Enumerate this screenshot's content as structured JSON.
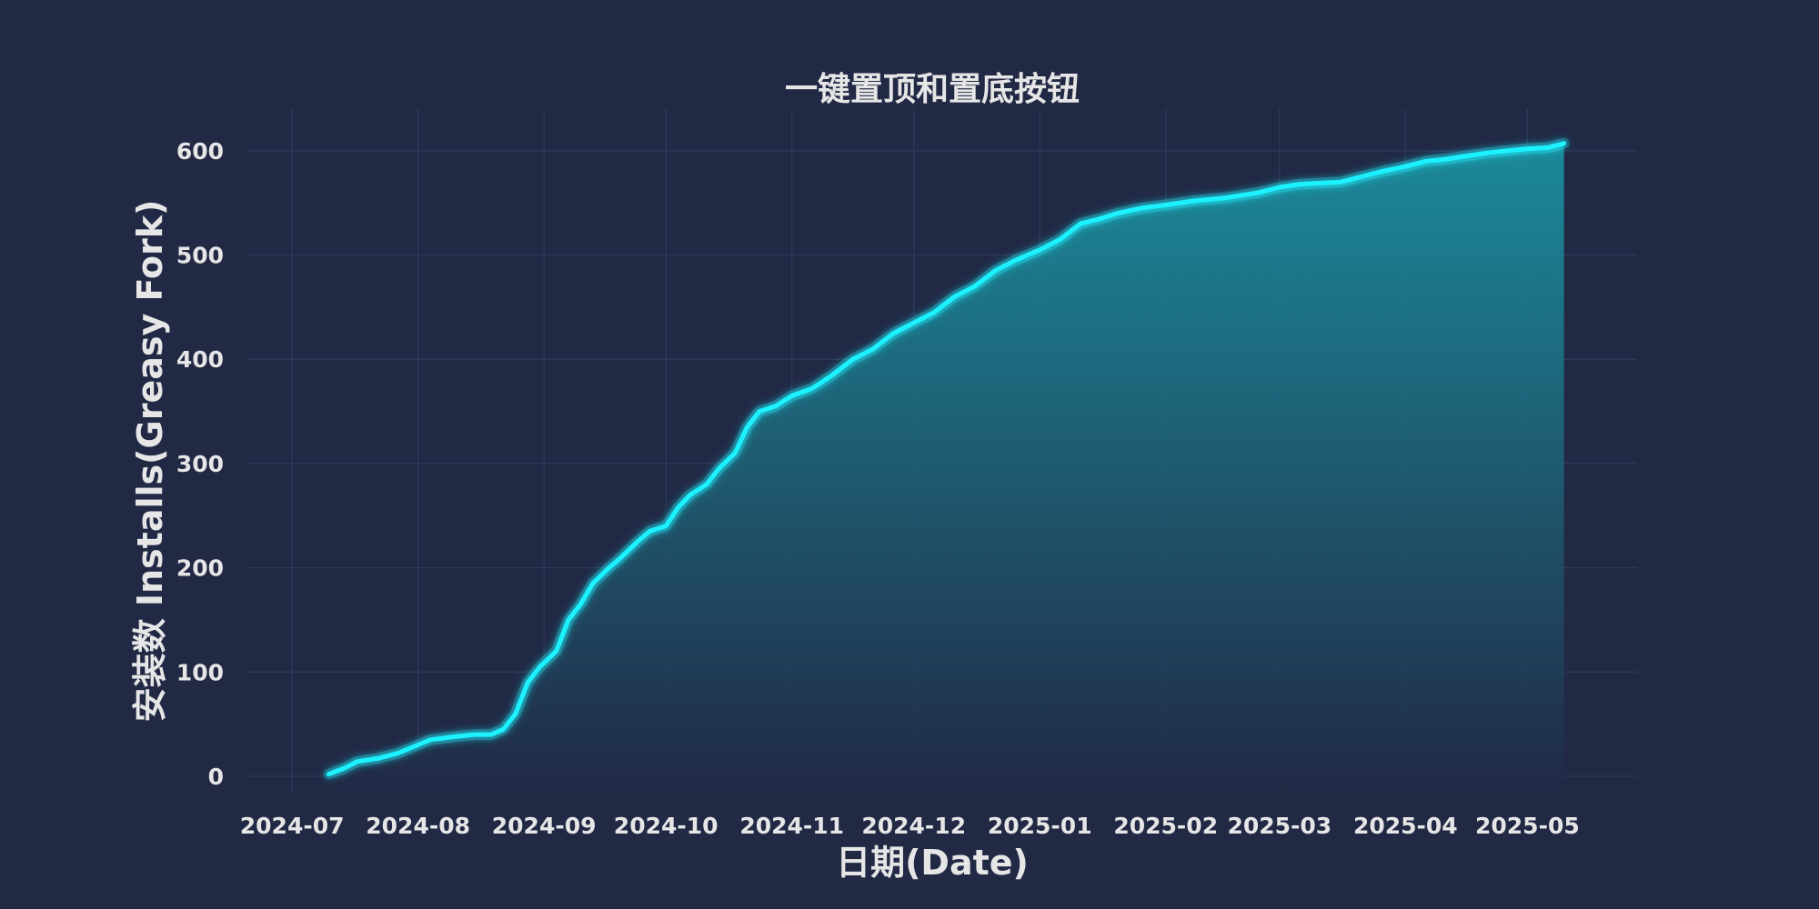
{
  "chart_data": {
    "type": "area",
    "title": "一键置顶和置底按钮",
    "xlabel": "日期(Date)",
    "ylabel": "安装数 Installs(Greasy Fork)",
    "ylim": [
      -14,
      640
    ],
    "xlim": [
      "2024-06-20",
      "2025-05-28"
    ],
    "grid": true,
    "colors": {
      "background": "#212945",
      "line": "#1ef2ff",
      "fill_top": "#1a9aa8",
      "fill_bottom": "#212945",
      "text": "#e6e6e6",
      "grid": "#2f3a5c"
    },
    "y_ticks": [
      0,
      100,
      200,
      300,
      400,
      500,
      600
    ],
    "x_ticks": [
      {
        "date": "2024-07-01",
        "label": "2024-07"
      },
      {
        "date": "2024-08-01",
        "label": "2024-08"
      },
      {
        "date": "2024-09-01",
        "label": "2024-09"
      },
      {
        "date": "2024-10-01",
        "label": "2024-10"
      },
      {
        "date": "2024-11-01",
        "label": "2024-11"
      },
      {
        "date": "2024-12-01",
        "label": "2024-12"
      },
      {
        "date": "2025-01-01",
        "label": "2025-01"
      },
      {
        "date": "2025-02-01",
        "label": "2025-02"
      },
      {
        "date": "2025-03-01",
        "label": "2025-03"
      },
      {
        "date": "2025-04-01",
        "label": "2025-04"
      },
      {
        "date": "2025-05-01",
        "label": "2025-05"
      }
    ],
    "series": [
      {
        "x": [
          "2024-07-10",
          "2024-07-14",
          "2024-07-17",
          "2024-07-22",
          "2024-07-27",
          "2024-08-01",
          "2024-08-04",
          "2024-08-10",
          "2024-08-15",
          "2024-08-19",
          "2024-08-22",
          "2024-08-25",
          "2024-08-28",
          "2024-08-31",
          "2024-09-04",
          "2024-09-07",
          "2024-09-10",
          "2024-09-13",
          "2024-09-17",
          "2024-09-20",
          "2024-09-24",
          "2024-09-27",
          "2024-10-01",
          "2024-10-04",
          "2024-10-07",
          "2024-10-11",
          "2024-10-14",
          "2024-10-18",
          "2024-10-21",
          "2024-10-24",
          "2024-10-28",
          "2024-11-01",
          "2024-11-06",
          "2024-11-11",
          "2024-11-16",
          "2024-11-21",
          "2024-11-26",
          "2024-12-01",
          "2024-12-06",
          "2024-12-11",
          "2024-12-16",
          "2024-12-21",
          "2024-12-26",
          "2025-01-01",
          "2025-01-06",
          "2025-01-11",
          "2025-01-16",
          "2025-01-20",
          "2025-01-26",
          "2025-02-01",
          "2025-02-08",
          "2025-02-16",
          "2025-02-24",
          "2025-03-01",
          "2025-03-06",
          "2025-03-16",
          "2025-03-21",
          "2025-03-26",
          "2025-04-01",
          "2025-04-06",
          "2025-04-11",
          "2025-04-16",
          "2025-04-21",
          "2025-04-26",
          "2025-05-01",
          "2025-05-06",
          "2025-05-10"
        ],
        "y": [
          2,
          8,
          14,
          17,
          22,
          30,
          35,
          38,
          40,
          40,
          45,
          60,
          90,
          105,
          120,
          150,
          165,
          185,
          200,
          210,
          225,
          235,
          240,
          258,
          270,
          280,
          295,
          310,
          335,
          350,
          355,
          365,
          372,
          385,
          400,
          410,
          425,
          435,
          445,
          460,
          470,
          485,
          495,
          505,
          515,
          530,
          535,
          540,
          545,
          548,
          552,
          555,
          560,
          565,
          568,
          570,
          575,
          580,
          585,
          590,
          592,
          595,
          598,
          600,
          602,
          603,
          607
        ]
      }
    ]
  }
}
